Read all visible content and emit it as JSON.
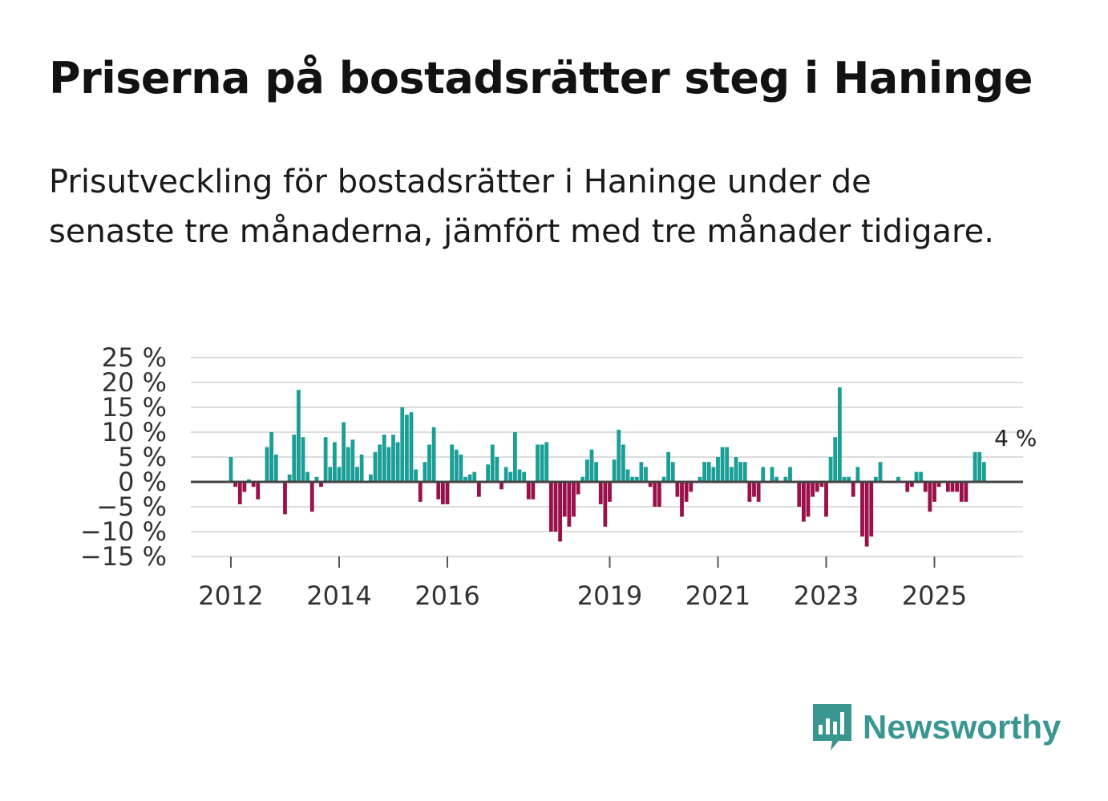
{
  "title": "Priserna på bostadsrätter steg i Haninge",
  "subtitle": "Prisutveckling för bostadsrätter i Haninge under de senaste tre månaderna, jämfört med tre månader tidigare.",
  "brand": {
    "name": "Newsworthy",
    "color": "#3a9690"
  },
  "colors": {
    "positive": "#1a9e95",
    "negative": "#99104a",
    "grid": "#dcdcdc",
    "zero": "#444444"
  },
  "chart_data": {
    "type": "bar",
    "title": "Priserna på bostadsrätter steg i Haninge",
    "xlabel": "",
    "ylabel": "",
    "unit": "%",
    "ylim": [
      -15,
      25
    ],
    "grid": true,
    "y_ticks": [
      25,
      20,
      15,
      10,
      5,
      0,
      -5,
      -10,
      -15
    ],
    "y_tick_labels": [
      "25 %",
      "20 %",
      "15 %",
      "10 %",
      "5 %",
      "0 %",
      "−5 %",
      "−10 %",
      "−15 %"
    ],
    "x_ticks": [
      {
        "label": "2012",
        "year": 2012
      },
      {
        "label": "2014",
        "year": 2014
      },
      {
        "label": "2016",
        "year": 2016
      },
      {
        "label": "2019",
        "year": 2019
      },
      {
        "label": "2021",
        "year": 2021
      },
      {
        "label": "2023",
        "year": 2023
      },
      {
        "label": "2025",
        "year": 2025
      }
    ],
    "start": "2012-01",
    "series": [
      {
        "name": "Prisutveckling",
        "values": [
          5,
          -1,
          -4.5,
          -2,
          0.5,
          -1,
          -3.5,
          0,
          7,
          10,
          5.5,
          0,
          -6.5,
          1.5,
          9.5,
          18.5,
          9,
          2,
          -6,
          1,
          -1,
          9,
          3,
          8,
          3,
          12,
          7,
          8.5,
          3,
          5.5,
          0,
          1.5,
          6,
          7.5,
          9.5,
          7,
          9.5,
          8,
          15,
          13.5,
          14,
          2.5,
          -4,
          4,
          7.5,
          11,
          -3.5,
          -4.5,
          -4.5,
          7.5,
          6.5,
          5.5,
          1,
          1.5,
          2,
          -3,
          0,
          3.5,
          7.5,
          5,
          -1.5,
          3,
          2,
          10,
          2.5,
          2,
          -3.5,
          -3.5,
          7.5,
          7.5,
          8,
          -10,
          -10,
          -12,
          -7,
          -9,
          -7,
          -2.5,
          1,
          4.5,
          6.5,
          4,
          -4.5,
          -9,
          -4,
          4.5,
          10.5,
          7.5,
          2.5,
          1,
          1,
          4,
          3,
          -1,
          -5,
          -5,
          1,
          6,
          4,
          -3,
          -7,
          -4,
          -2,
          0,
          1,
          4,
          4,
          3,
          5,
          7,
          7,
          3,
          5,
          4,
          4,
          -4,
          -3,
          -4,
          3,
          0,
          3,
          1,
          0,
          1,
          3,
          0,
          -5,
          -8,
          -7,
          -3,
          -2,
          -1,
          -7,
          5,
          9,
          19,
          1,
          1,
          -3,
          3,
          -11,
          -13,
          -11,
          1,
          4,
          0,
          0,
          0,
          1,
          0,
          -2,
          -1,
          2,
          2,
          -2,
          -6,
          -4,
          -1,
          0,
          -2,
          -2,
          -2,
          -4,
          -4,
          0,
          6,
          6,
          4
        ]
      }
    ],
    "annotations": [
      {
        "text": "4 %",
        "index": 174
      }
    ]
  }
}
